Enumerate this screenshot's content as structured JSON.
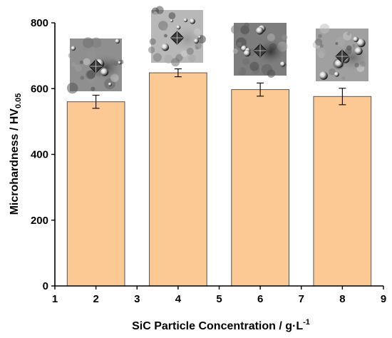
{
  "chart_data": {
    "type": "bar",
    "x": [
      2,
      4,
      6,
      8
    ],
    "values": [
      560,
      648,
      597,
      576
    ],
    "errors": [
      20,
      12,
      20,
      25
    ],
    "xlim": [
      1,
      9
    ],
    "ylim": [
      0,
      800
    ],
    "x_ticks": [
      1,
      2,
      3,
      4,
      5,
      6,
      7,
      8,
      9
    ],
    "y_ticks": [
      0,
      200,
      400,
      600,
      800
    ],
    "xlabel": {
      "main": "SiC Particle Concentration / g·L",
      "sup": "-1"
    },
    "ylabel": {
      "main": "Microhardness / HV",
      "sub": "0.05"
    },
    "bar_color": "#fcc995",
    "bar_stroke": "#555555",
    "grid": false,
    "insets": [
      "micrograph-2",
      "micrograph-4",
      "micrograph-6",
      "micrograph-8"
    ]
  }
}
